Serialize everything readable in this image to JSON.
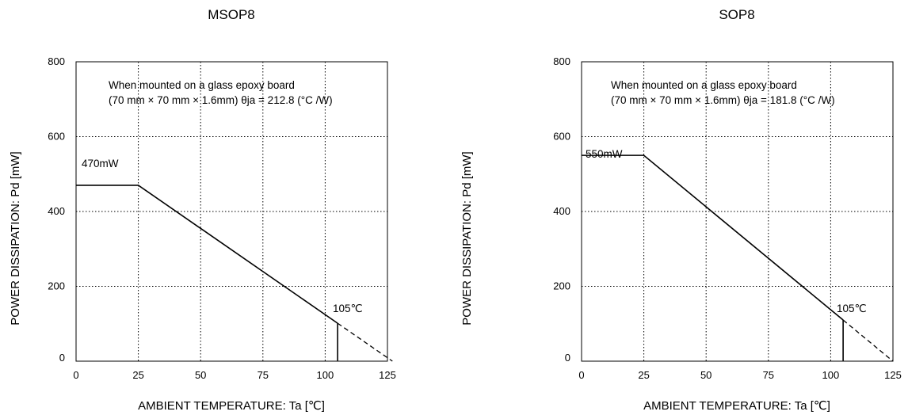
{
  "chart_data": [
    {
      "type": "line",
      "title": "MSOP8",
      "xlabel": "AMBIENT TEMPERATURE: Ta [℃]",
      "ylabel": "POWER DISSIPATION: Pd [mW]",
      "xlim": [
        0,
        125
      ],
      "ylim": [
        0,
        800
      ],
      "xticks": [
        "0",
        "25",
        "50",
        "75",
        "100",
        "125"
      ],
      "yticks": [
        "0",
        "200",
        "400",
        "600",
        "800"
      ],
      "grid": true,
      "annotation": {
        "line1": "When mounted on a glass epoxy board",
        "line2": "(70 mm × 70 mm × 1.6mm) θja = 212.8 (°C /W)"
      },
      "power_label": "470mW",
      "temp_label": "105℃",
      "series": [
        {
          "style": "solid",
          "points": [
            [
              0,
              470
            ],
            [
              25,
              470
            ],
            [
              105,
              0
            ]
          ]
        },
        {
          "style": "dashed",
          "points": [
            [
              105,
              0
            ],
            [
              125,
              0
            ]
          ]
        }
      ],
      "mark_x": 105,
      "mark_top": 0
    },
    {
      "type": "line",
      "title": "SOP8",
      "xlabel": "AMBIENT TEMPERATURE: Ta [℃]",
      "ylabel": "POWER DISSIPATION: Pd [mW]",
      "xlim": [
        0,
        125
      ],
      "ylim": [
        0,
        800
      ],
      "xticks": [
        "0",
        "25",
        "50",
        "75",
        "100",
        "125"
      ],
      "yticks": [
        "0",
        "200",
        "400",
        "600",
        "800"
      ],
      "grid": true,
      "annotation": {
        "line1": "When mounted on a glass epoxy board",
        "line2": "(70 mm × 70 mm × 1.6mm) θja = 181.8 (°C /W)"
      },
      "power_label": "550mW",
      "temp_label": "105℃",
      "series": [
        {
          "style": "solid",
          "points": [
            [
              0,
              550
            ],
            [
              25,
              550
            ],
            [
              105,
              0
            ]
          ]
        },
        {
          "style": "dashed",
          "points": [
            [
              105,
              0
            ],
            [
              125,
              0
            ]
          ]
        }
      ],
      "mark_x": 105,
      "mark_top": 0
    }
  ]
}
